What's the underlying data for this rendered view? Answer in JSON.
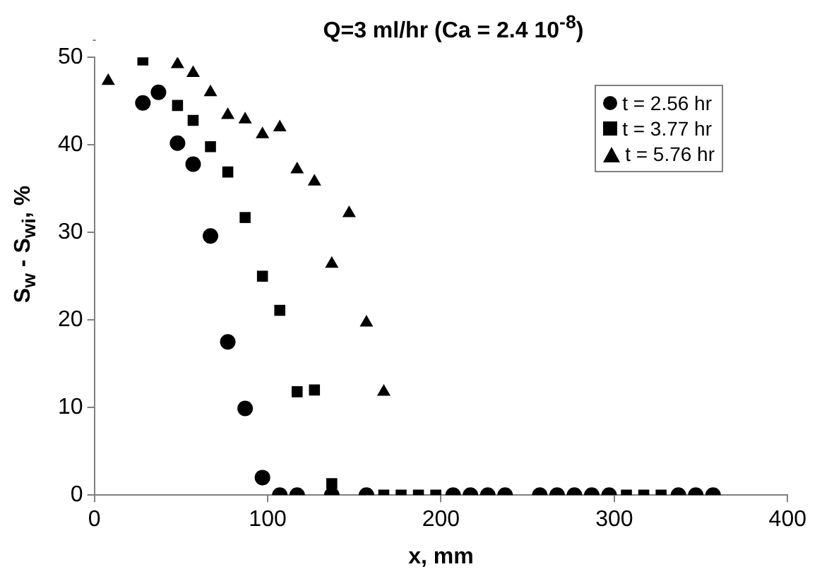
{
  "chart_data": {
    "type": "scatter",
    "title": "Q=3 ml/hr  (Ca = 2.4 10$^{-8}$)",
    "xlabel": "x, mm",
    "ylabel": "S$_{w}$ - S$_{wi}$, %",
    "xlim": [
      0,
      400
    ],
    "xticks": [
      0,
      100,
      200,
      300,
      400
    ],
    "ylim": [
      0,
      50
    ],
    "yticks": [
      0,
      10,
      20,
      30,
      40,
      50
    ],
    "grid": false,
    "legend": "top right",
    "series": [
      {
        "name": "t = 2.56 hr",
        "color": "#000000",
        "marker": "circle",
        "x": [
          28,
          37,
          48,
          57,
          67,
          77,
          87,
          97,
          107,
          117,
          137,
          157,
          207,
          217,
          227,
          237,
          257,
          267,
          277,
          287,
          297,
          337,
          347,
          357
        ],
        "values": [
          44.8,
          46,
          40.2,
          37.8,
          29.6,
          17.5,
          9.9,
          2,
          0,
          0,
          0,
          0,
          0,
          0,
          0,
          0,
          0,
          0,
          0,
          0,
          0,
          0,
          0,
          0
        ]
      },
      {
        "name": "t = 3.77 hr",
        "color": "#000000",
        "marker": "square",
        "x": [
          28,
          48,
          57,
          67,
          77,
          87,
          97,
          107,
          117,
          127,
          137,
          167,
          177,
          187,
          197,
          307,
          317,
          327
        ],
        "values": [
          49.7,
          44.5,
          42.8,
          39.8,
          36.9,
          31.7,
          25,
          21.1,
          11.8,
          12,
          1.3,
          0,
          0,
          0,
          0,
          0,
          0,
          0
        ]
      },
      {
        "name": "t = 5.76 hr",
        "color": "#000000",
        "marker": "triangle",
        "x": [
          8,
          48,
          57,
          67,
          77,
          87,
          97,
          107,
          117,
          127,
          137,
          147,
          157,
          167
        ],
        "values": [
          47.3,
          49.2,
          48.2,
          46,
          43.4,
          42.9,
          41.2,
          42,
          37.2,
          35.8,
          26.4,
          32.2,
          19.7,
          11.8
        ]
      }
    ]
  }
}
